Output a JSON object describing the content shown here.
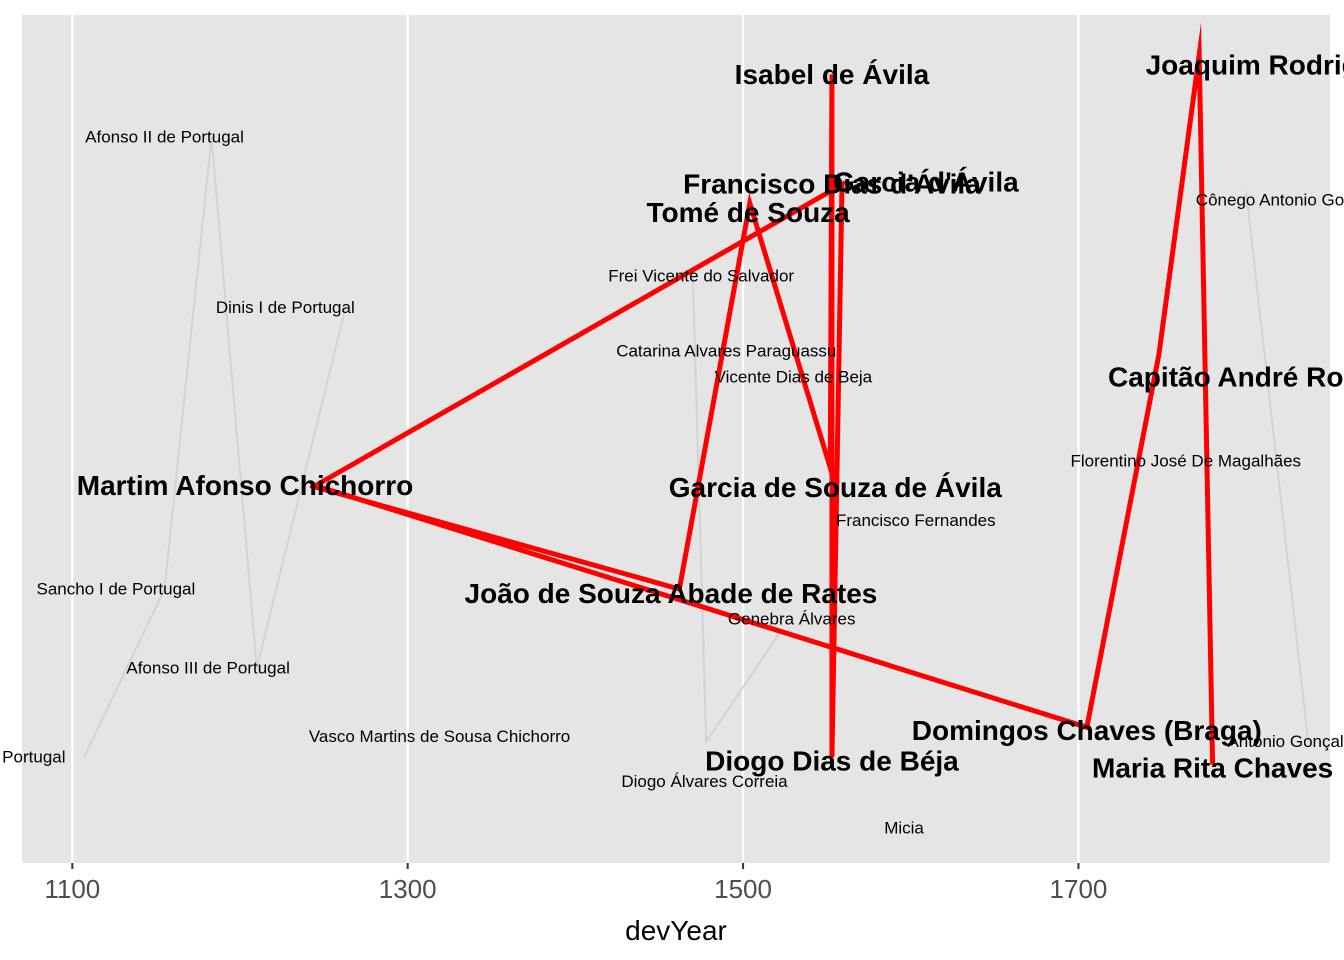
{
  "chart_data": {
    "type": "line",
    "title": "",
    "xlabel": "devYear",
    "ylabel": "",
    "xlim": [
      1070,
      1850
    ],
    "ylim": [
      0,
      100
    ],
    "x_ticks": [
      1100,
      1300,
      1500,
      1700
    ],
    "x_tick_labels": [
      "1100",
      "1300",
      "1500",
      "1700"
    ],
    "grid": true,
    "legend": "none",
    "colors": {
      "panel": "#e5e5e5",
      "grid": "#ffffff",
      "background_lines": "#d3d3d3",
      "highlight_line": "#ff0000",
      "tick_text": "#4d4d4d"
    },
    "background_lines": [
      [
        [
          1107,
          12.5
        ],
        [
          1155,
          32.3
        ],
        [
          1183,
          85.6
        ],
        [
          1210,
          23.0
        ],
        [
          1263,
          65.5
        ]
      ],
      [
        [
          1470,
          69.2
        ],
        [
          1478,
          14.3
        ],
        [
          1523,
          27.5
        ]
      ],
      [
        [
          1800,
          79.2
        ],
        [
          1837,
          14.3
        ]
      ]
    ],
    "highlight_line": [
      [
        1242,
        44.5
      ],
      [
        1462,
        32.3
      ],
      [
        1504,
        77.8
      ],
      [
        1552,
        46.6
      ],
      [
        1553,
        93.0
      ],
      [
        1553,
        12.5
      ],
      [
        1559,
        80.0
      ],
      [
        1245,
        44.5
      ],
      [
        1705,
        16.0
      ],
      [
        1748,
        60.0
      ],
      [
        1772,
        95.3
      ],
      [
        1780,
        11.6
      ]
    ],
    "labels": [
      {
        "text": "Isabel de Ávila",
        "x": 1553,
        "y": 93.0,
        "bold": true
      },
      {
        "text": "Joaquim Rodrigues Chaves",
        "x": 1850,
        "y": 94.1,
        "bold": true
      },
      {
        "text": "Afonso II de Portugal",
        "x": 1155,
        "y": 85.6,
        "bold": false
      },
      {
        "text": "Francisco Dias d'Ávila",
        "x": 1553,
        "y": 80.1,
        "bold": true
      },
      {
        "text": "Garcia d'Ávila",
        "x": 1609,
        "y": 80.3,
        "bold": true
      },
      {
        "text": "Cônego Antonio Gonçalves Chaves",
        "x": 1850,
        "y": 78.2,
        "bold": false
      },
      {
        "text": "Tomé de Souza",
        "x": 1503,
        "y": 76.7,
        "bold": true
      },
      {
        "text": "Frei Vicente do Salvador",
        "x": 1475,
        "y": 69.2,
        "bold": false
      },
      {
        "text": "Dinis I de Portugal",
        "x": 1227,
        "y": 65.5,
        "bold": false
      },
      {
        "text": "Catarina Alvares Paraguassu",
        "x": 1490,
        "y": 60.4,
        "bold": false
      },
      {
        "text": "Vicente Dias de Beja",
        "x": 1530,
        "y": 57.3,
        "bold": false
      },
      {
        "text": "Capitão André Rodrigues Chaves",
        "x": 1850,
        "y": 57.3,
        "bold": true
      },
      {
        "text": "Florentino José De Magalhães",
        "x": 1764,
        "y": 47.4,
        "bold": false
      },
      {
        "text": "Martim Afonso Chichorro",
        "x": 1203,
        "y": 44.5,
        "bold": true
      },
      {
        "text": "Garcia de Souza de Ávila",
        "x": 1555,
        "y": 44.3,
        "bold": true
      },
      {
        "text": "Francisco Fernandes",
        "x": 1603,
        "y": 40.4,
        "bold": false
      },
      {
        "text": "Sancho I de Portugal",
        "x": 1126,
        "y": 32.3,
        "bold": false
      },
      {
        "text": "João de Souza Abade de Rates",
        "x": 1457,
        "y": 31.8,
        "bold": true
      },
      {
        "text": "Genebra Álvares",
        "x": 1529,
        "y": 28.8,
        "bold": false
      },
      {
        "text": "Afonso III de Portugal",
        "x": 1181,
        "y": 23.0,
        "bold": false
      },
      {
        "text": "Domingos Chaves (Braga)",
        "x": 1705,
        "y": 15.6,
        "bold": true
      },
      {
        "text": "Vasco Martins de Sousa Chichorro",
        "x": 1319,
        "y": 14.9,
        "bold": false
      },
      {
        "text": "Antonio Gonçalves Chaves",
        "x": 1850,
        "y": 14.3,
        "bold": false
      },
      {
        "text": "Diogo Dias de Béja",
        "x": 1553,
        "y": 12.0,
        "bold": true
      },
      {
        "text": "Afonso I de Portugal",
        "x": 1050,
        "y": 12.5,
        "bold": false
      },
      {
        "text": "Maria Rita Chaves",
        "x": 1780,
        "y": 11.2,
        "bold": true
      },
      {
        "text": "Diogo Álvares Correia",
        "x": 1477,
        "y": 9.6,
        "bold": false
      },
      {
        "text": "Micia",
        "x": 1596,
        "y": 4.1,
        "bold": false
      }
    ]
  }
}
